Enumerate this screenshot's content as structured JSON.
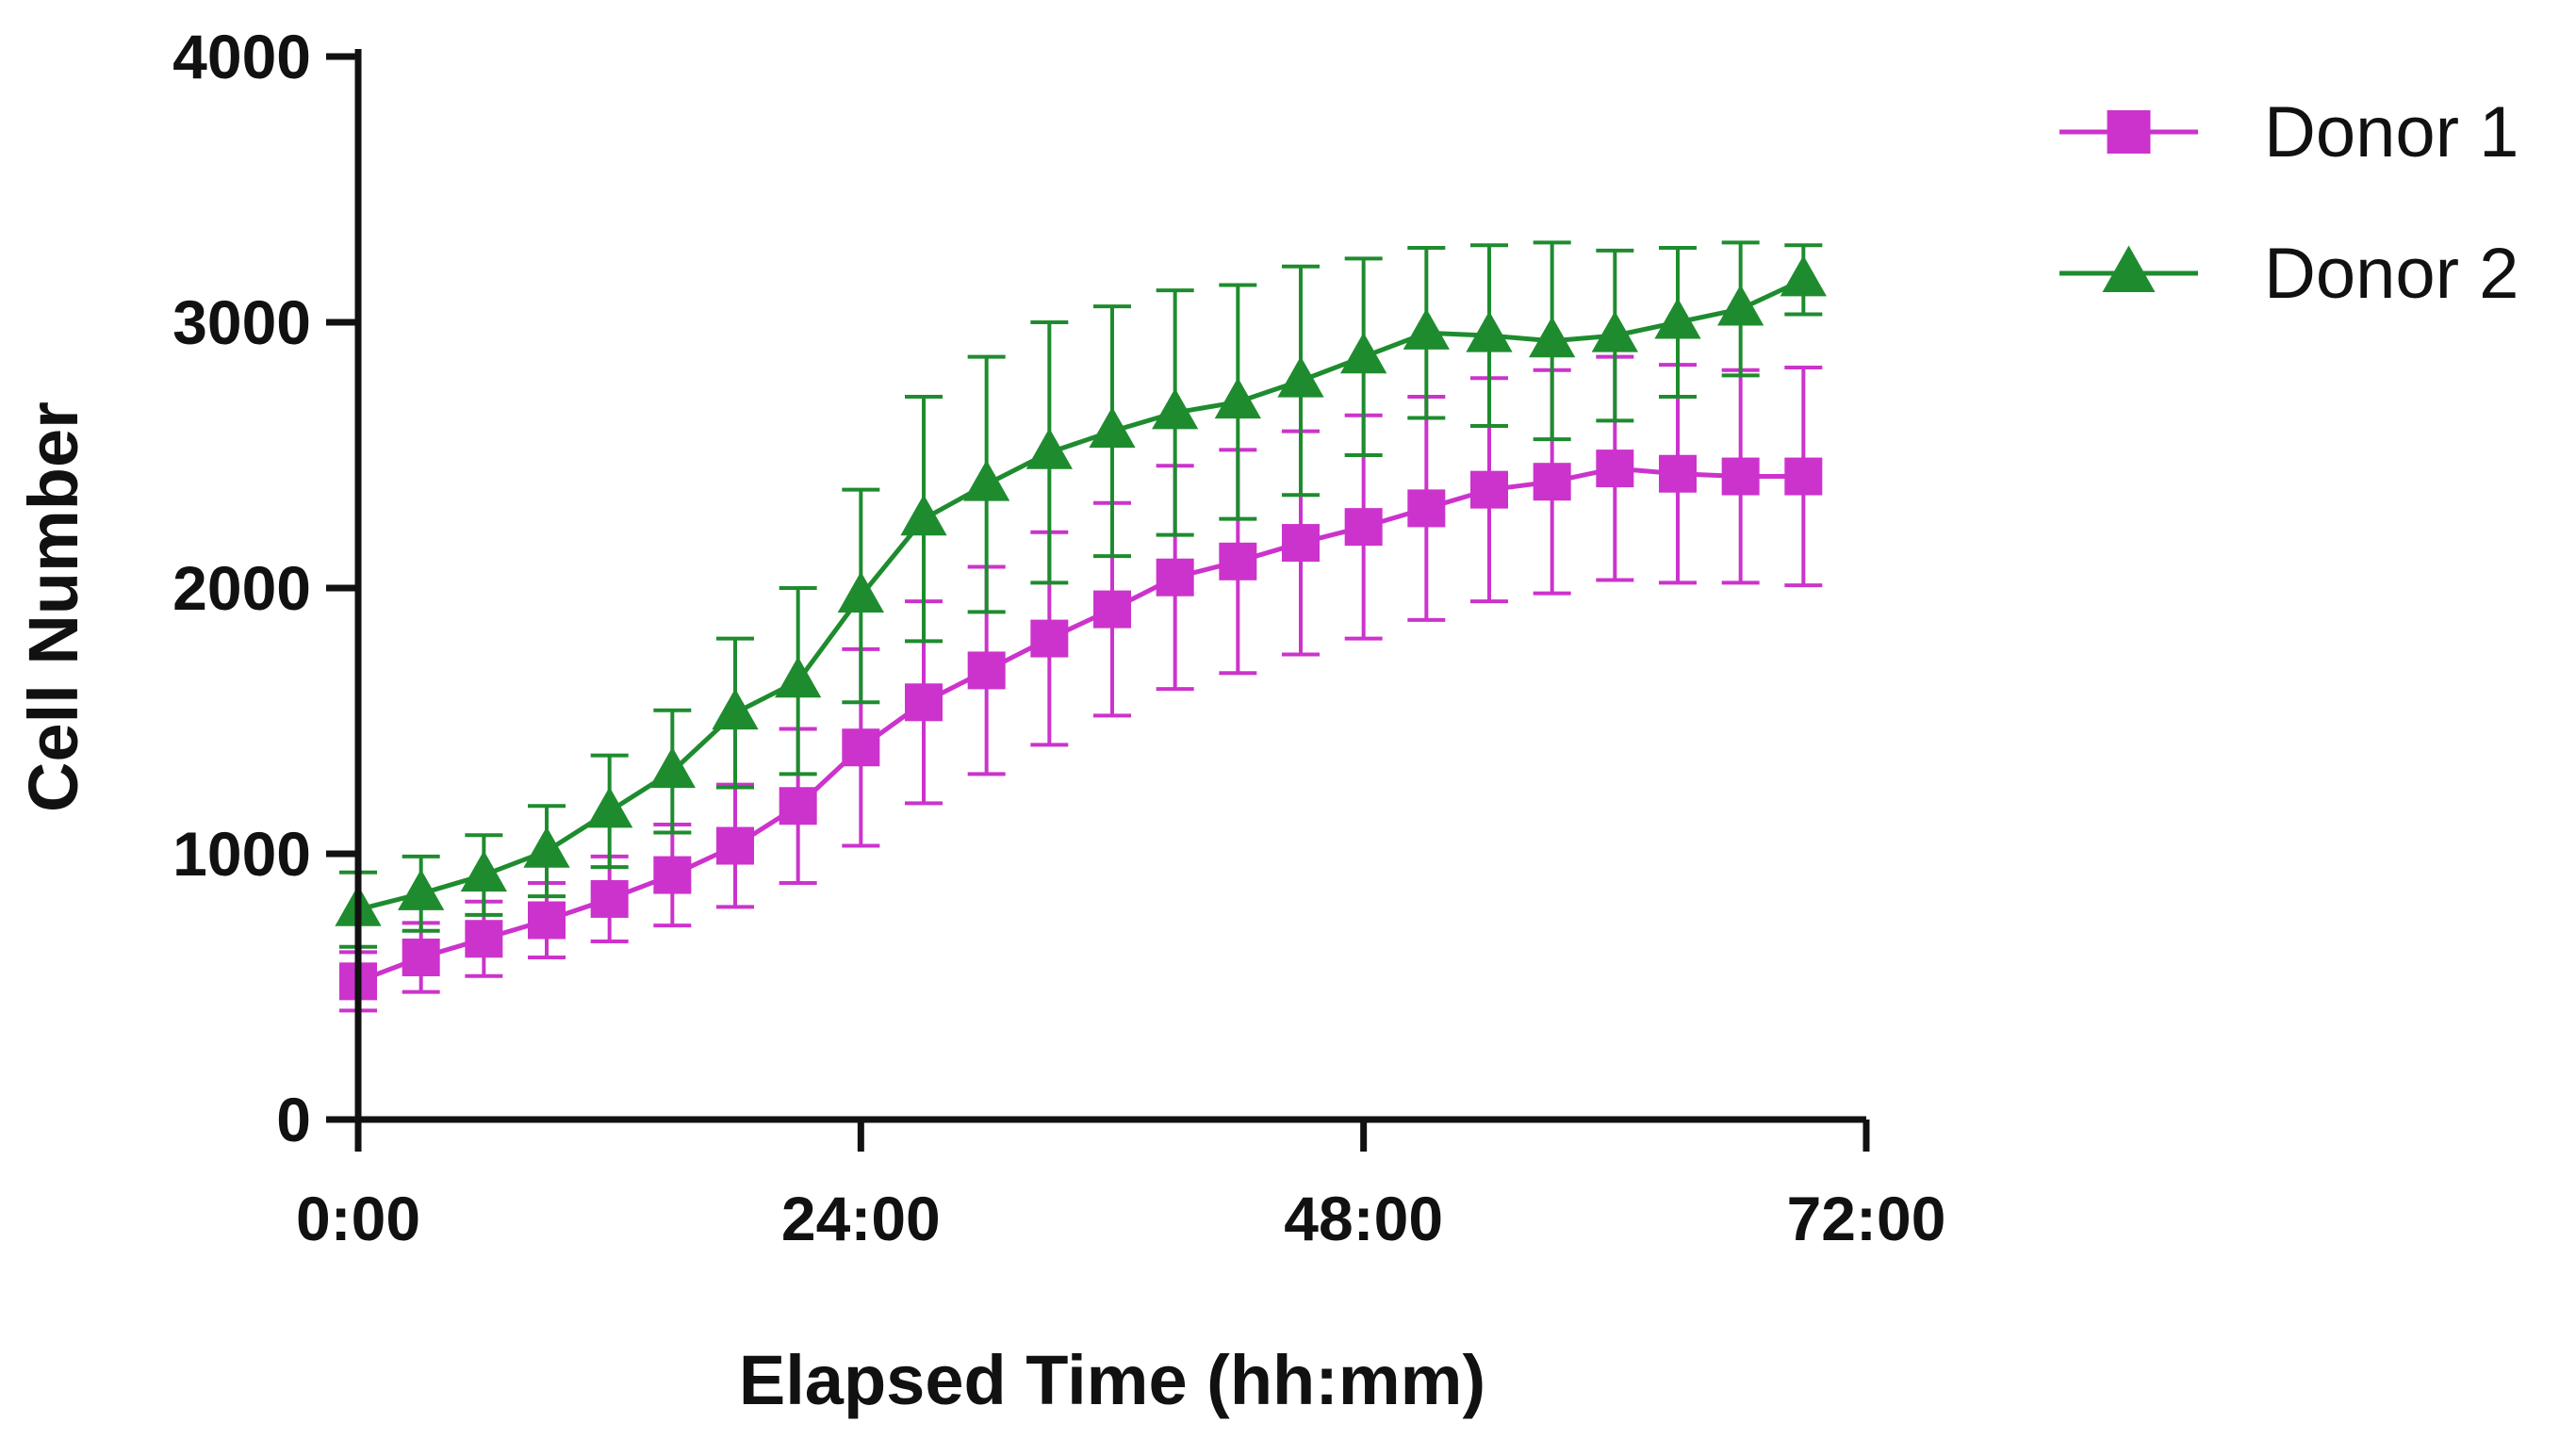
{
  "chart_data": {
    "type": "line",
    "title": "",
    "xlabel": "Elapsed Time (hh:mm)",
    "ylabel": "Cell Number",
    "xlim": [
      0,
      72
    ],
    "ylim": [
      0,
      4000
    ],
    "xticks": [
      0,
      24,
      48,
      72
    ],
    "xtick_labels": [
      "0:00",
      "24:00",
      "48:00",
      "72:00"
    ],
    "yticks": [
      0,
      1000,
      2000,
      3000,
      4000
    ],
    "ytick_labels": [
      "0",
      "1000",
      "2000",
      "3000",
      "4000"
    ],
    "grid": false,
    "legend_position": "top-right",
    "x": [
      0,
      3,
      6,
      9,
      12,
      15,
      18,
      21,
      24,
      27,
      30,
      33,
      36,
      39,
      42,
      45,
      48,
      51,
      54,
      57,
      60,
      63,
      66,
      69
    ],
    "series": [
      {
        "name": "Donor 1",
        "color": "#cc33cc",
        "marker": "square",
        "values": [
          520,
          610,
          680,
          750,
          830,
          920,
          1030,
          1180,
          1400,
          1570,
          1690,
          1810,
          1920,
          2040,
          2100,
          2170,
          2230,
          2300,
          2370,
          2400,
          2450,
          2430,
          2420,
          2420
        ],
        "error": [
          110,
          130,
          140,
          140,
          160,
          190,
          230,
          290,
          370,
          380,
          390,
          400,
          400,
          420,
          420,
          420,
          420,
          420,
          420,
          420,
          420,
          410,
          400,
          410
        ]
      },
      {
        "name": "Donor 2",
        "color": "#1e8c2e",
        "marker": "triangle",
        "values": [
          790,
          850,
          920,
          1010,
          1160,
          1310,
          1530,
          1650,
          1970,
          2260,
          2390,
          2510,
          2590,
          2660,
          2700,
          2780,
          2870,
          2960,
          2950,
          2930,
          2950,
          3000,
          3050,
          3160
        ],
        "error": [
          140,
          140,
          150,
          170,
          210,
          230,
          280,
          350,
          400,
          460,
          480,
          490,
          470,
          460,
          440,
          430,
          370,
          320,
          340,
          370,
          320,
          280,
          250,
          130
        ]
      }
    ]
  }
}
